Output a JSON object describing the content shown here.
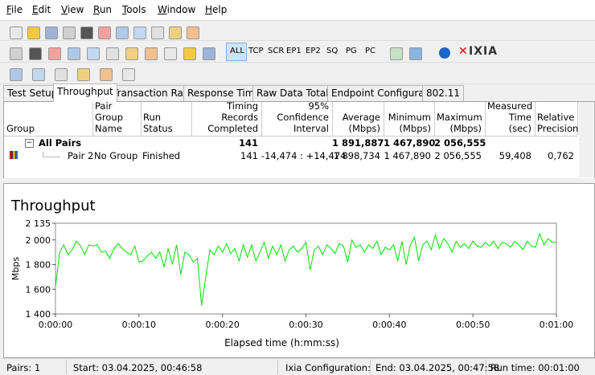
{
  "menu": [
    "File",
    "Edit",
    "View",
    "Run",
    "Tools",
    "Window",
    "Help"
  ],
  "toolbar": {
    "buttons": [
      "ALL",
      "TCP",
      "SCR",
      "EP1",
      "EP2",
      "SQ",
      "PG",
      "PC"
    ],
    "logo": "IXIA"
  },
  "tabs": [
    "Test Setup",
    "Throughput",
    "Transaction Rate",
    "Response Time",
    "Raw Data Totals",
    "Endpoint Configuration",
    "802.11"
  ],
  "table": {
    "columns": [
      "Group",
      "Pair Group Name",
      "Run Status",
      "Timing Records Completed",
      "95% Confidence Interval",
      "Average (Mbps)",
      "Minimum (Mbps)",
      "Maximum (Mbps)",
      "Measured Time (sec)",
      "Relative Precision"
    ],
    "rows": [
      {
        "group": "All Pairs",
        "records": "141",
        "average": "1 891,887",
        "minimum": "1 467,890",
        "maximum": "2 056,555"
      },
      {
        "group": "Pair 2",
        "pair_group_name": "No Group",
        "run_status": "Finished",
        "records": "141",
        "confidence": "-14,474 : +14,474",
        "average": "1 898,734",
        "minimum": "1 467,890",
        "maximum": "2 056,555",
        "measured_time": "59,408",
        "relative_precision": "0,762"
      }
    ]
  },
  "chart_data": {
    "type": "line",
    "title": "Throughput",
    "xlabel": "Elapsed time (h:mm:ss)",
    "ylabel": "Mbps",
    "grid": false,
    "xlim": [
      0,
      60
    ],
    "xticks": [
      {
        "value": 0,
        "label": "0:00:00"
      },
      {
        "value": 10,
        "label": "0:00:10"
      },
      {
        "value": 20,
        "label": "0:00:20"
      },
      {
        "value": 30,
        "label": "0:00:30"
      },
      {
        "value": 40,
        "label": "0:00:40"
      },
      {
        "value": 50,
        "label": "0:00:50"
      },
      {
        "value": 60,
        "label": "0:01:00"
      }
    ],
    "ylim": [
      1400,
      2135
    ],
    "yticks": [
      {
        "value": 1400,
        "label": "1 400"
      },
      {
        "value": 1600,
        "label": "1 600"
      },
      {
        "value": 1800,
        "label": "1 800"
      },
      {
        "value": 2000,
        "label": "2 000"
      },
      {
        "value": 2135,
        "label": "2 135"
      }
    ],
    "x": [
      0,
      0.5,
      1,
      1.5,
      2,
      2.5,
      3,
      3.5,
      4,
      4.5,
      5,
      5.5,
      6,
      6.5,
      7,
      7.5,
      8,
      8.5,
      9,
      9.5,
      10,
      10.5,
      11,
      11.5,
      12,
      12.5,
      13,
      13.5,
      14,
      14.5,
      15,
      15.5,
      16,
      16.5,
      17,
      17.5,
      18,
      18.5,
      19,
      19.5,
      20,
      20.5,
      21,
      21.5,
      22,
      22.5,
      23,
      23.5,
      24,
      24.5,
      25,
      25.5,
      26,
      26.5,
      27,
      27.5,
      28,
      28.5,
      29,
      29.5,
      30,
      30.5,
      31,
      31.5,
      32,
      32.5,
      33,
      33.5,
      34,
      34.5,
      35,
      35.5,
      36,
      36.5,
      37,
      37.5,
      38,
      38.5,
      39,
      39.5,
      40,
      40.5,
      41,
      41.5,
      42,
      42.5,
      43,
      43.5,
      44,
      44.5,
      45,
      45.5,
      46,
      46.5,
      47,
      47.5,
      48,
      48.5,
      49,
      49.5,
      50,
      50.5,
      51,
      51.5,
      52,
      52.5,
      53,
      53.5,
      54,
      54.5,
      55,
      55.5,
      56,
      56.5,
      57,
      57.5,
      58,
      58.5,
      59,
      59.5,
      60
    ],
    "series": [
      {
        "color": "#00e000",
        "values": [
          1620,
          1900,
          1960,
          1880,
          1920,
          1990,
          1950,
          1880,
          1960,
          1950,
          1960,
          1900,
          1910,
          1850,
          1930,
          1970,
          1930,
          1900,
          1880,
          1950,
          1820,
          1830,
          1870,
          1900,
          1850,
          1900,
          1780,
          1930,
          1800,
          1960,
          1720,
          1900,
          1880,
          1820,
          1850,
          1470,
          1700,
          1920,
          1880,
          1950,
          1900,
          1970,
          1890,
          1930,
          1830,
          1960,
          1860,
          1960,
          1830,
          1900,
          1980,
          1850,
          1950,
          1880,
          1960,
          1830,
          1920,
          1950,
          1900,
          1930,
          1980,
          1760,
          1920,
          1950,
          1880,
          1960,
          1930,
          1890,
          1970,
          1950,
          1820,
          2000,
          1940,
          1960,
          1900,
          1960,
          1930,
          1990,
          1880,
          1940,
          1920,
          1960,
          1830,
          1990,
          1800,
          1960,
          2020,
          1830,
          1960,
          1990,
          1920,
          2040,
          1930,
          2010,
          1970,
          1900,
          1990,
          1940,
          1970,
          1930,
          1990,
          1950,
          1940,
          1980,
          1950,
          1990,
          1930,
          1980,
          1970,
          1940,
          1990,
          1960,
          1920,
          1990,
          1950,
          1940,
          2050,
          1960,
          2010,
          1980,
          1980
        ]
      }
    ]
  },
  "status": [
    "Pairs: 1",
    "Start: 03.04.2025, 00:46:58",
    "Ixia Configuration:",
    "End: 03.04.2025, 00:47:58",
    "Run time: 00:01:00"
  ]
}
